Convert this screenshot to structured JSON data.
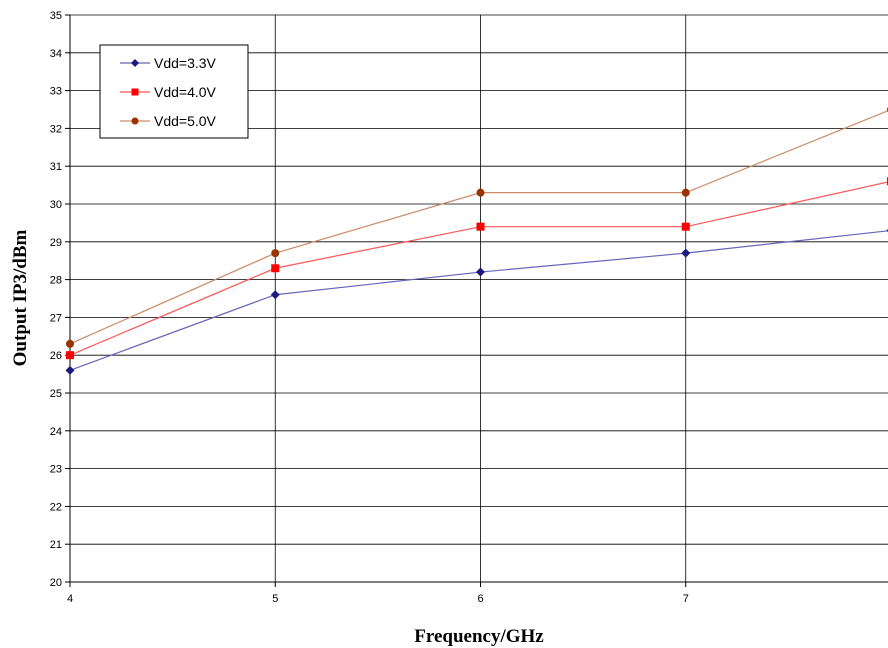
{
  "chart_data": {
    "type": "line",
    "xlabel": "Frequency/GHz",
    "ylabel": "Output IP3/dBm",
    "x": [
      4,
      5,
      6,
      7,
      8
    ],
    "xlim": [
      4,
      8
    ],
    "ylim": [
      20,
      35
    ],
    "xticks": [
      "4",
      "5",
      "6",
      "7",
      "8"
    ],
    "yticks": [
      "20",
      "21",
      "22",
      "23",
      "24",
      "25",
      "26",
      "27",
      "28",
      "29",
      "30",
      "31",
      "32",
      "33",
      "34",
      "35"
    ],
    "grid": true,
    "legend_position": "top-left",
    "series": [
      {
        "name": "Vdd=3.3V",
        "values": [
          25.6,
          27.6,
          28.2,
          28.7,
          29.3
        ],
        "line_color": "#6666bb",
        "marker_color": "#1a1a80",
        "marker": "diamond"
      },
      {
        "name": "Vdd=4.0V",
        "values": [
          26.0,
          28.3,
          29.4,
          29.4,
          30.6
        ],
        "line_color": "#ff5555",
        "marker_color": "#ff0000",
        "marker": "square"
      },
      {
        "name": "Vdd=5.0V",
        "values": [
          26.3,
          28.7,
          30.3,
          30.3,
          32.5
        ],
        "line_color": "#cc8a66",
        "marker_color": "#993300",
        "marker": "circle"
      }
    ]
  }
}
